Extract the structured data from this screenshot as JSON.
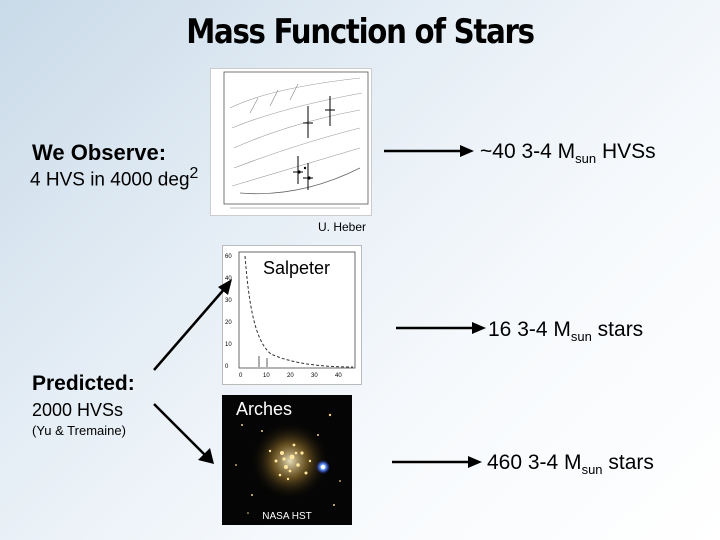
{
  "title": "Mass Function of Stars",
  "observe": {
    "heading": "We Observe:",
    "detail_main": "4 HVS in 4000 deg",
    "detail_sup": "2",
    "result_prefix": "~40  3-4 M",
    "result_sub": "sun",
    "result_suffix": " HVSs",
    "figure_credit": "U. Heber"
  },
  "predicted": {
    "heading": "Predicted:",
    "detail": "2000 HVSs",
    "citation": "(Yu & Tremaine)"
  },
  "salpeter": {
    "label": "Salpeter",
    "result_prefix": "16  3-4 M",
    "result_sub": "sun",
    "result_suffix": " stars"
  },
  "arches": {
    "label": "Arches",
    "credit": "NASA HST",
    "result_prefix": "460 3-4 M",
    "result_sub": "sun",
    "result_suffix": " stars"
  },
  "icons": {
    "arrows": [
      "right-arrow-icon",
      "right-arrow-icon",
      "right-arrow-icon"
    ],
    "connectors": [
      "diagonal-up-arrow-icon",
      "diagonal-down-arrow-icon"
    ]
  },
  "colors": {
    "arrow": "#000000",
    "background_start": "#c9dae8",
    "background_end": "#ffffff"
  }
}
